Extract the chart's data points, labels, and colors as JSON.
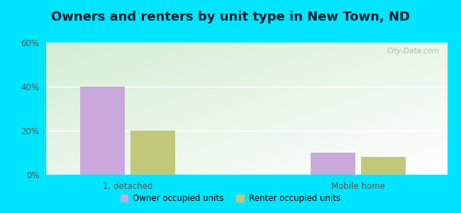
{
  "title": "Owners and renters by unit type in New Town, ND",
  "categories": [
    "1, detached",
    "Mobile home"
  ],
  "owner_values": [
    40,
    10
  ],
  "renter_values": [
    20,
    8
  ],
  "owner_color": "#c9a8dc",
  "renter_color": "#c2c87a",
  "ylim_max": 60,
  "yticks": [
    0,
    20,
    40,
    60
  ],
  "ytick_labels": [
    "0%",
    "20%",
    "40%",
    "60%"
  ],
  "outer_bg": "#00e5ff",
  "title_fontsize": 13,
  "title_color": "#1a1a2e",
  "legend_labels": [
    "Owner occupied units",
    "Renter occupied units"
  ],
  "watermark": "City-Data.com",
  "bar_width": 0.3,
  "x_positions": [
    0.55,
    2.1
  ],
  "xlim": [
    0.0,
    2.7
  ]
}
